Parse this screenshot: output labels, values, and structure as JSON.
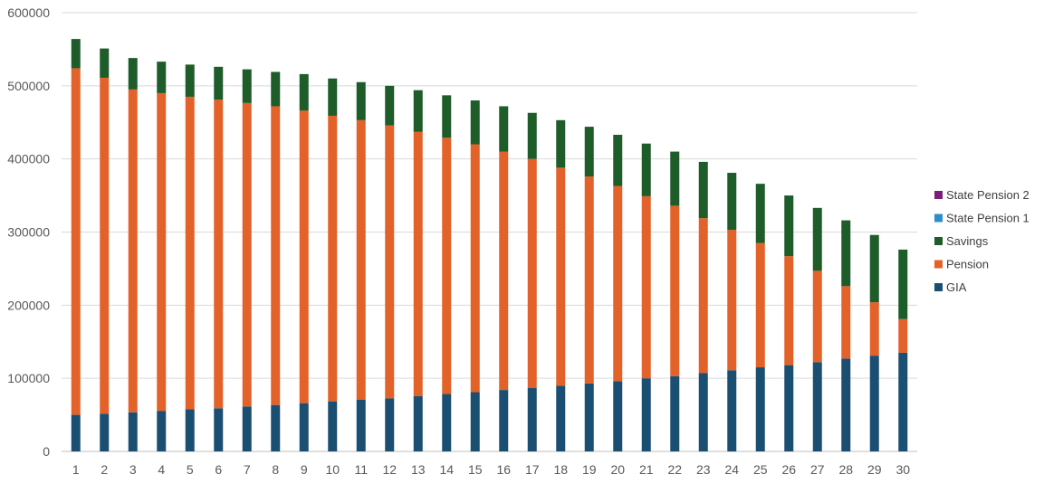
{
  "chart_data": {
    "type": "bar",
    "stacked": true,
    "title": "",
    "xlabel": "",
    "ylabel": "",
    "ylim": [
      0,
      600000
    ],
    "yticks": [
      0,
      100000,
      200000,
      300000,
      400000,
      500000,
      600000
    ],
    "grid": true,
    "legend_position": "right",
    "categories": [
      "1",
      "2",
      "3",
      "4",
      "5",
      "6",
      "7",
      "8",
      "9",
      "10",
      "11",
      "12",
      "13",
      "14",
      "15",
      "16",
      "17",
      "18",
      "19",
      "20",
      "21",
      "22",
      "23",
      "24",
      "25",
      "26",
      "27",
      "28",
      "29",
      "30"
    ],
    "series": [
      {
        "name": "GIA",
        "color": "#1b4f72",
        "values": [
          50000,
          51500,
          53500,
          55500,
          57500,
          59000,
          61500,
          63500,
          66000,
          68500,
          70500,
          72500,
          75500,
          78500,
          81000,
          84000,
          87000,
          90000,
          93000,
          96000,
          100000,
          103000,
          107000,
          111000,
          115000,
          118000,
          122000,
          127000,
          131000,
          135000
        ]
      },
      {
        "name": "Pension",
        "color": "#e2622a",
        "values": [
          474000,
          459500,
          441500,
          434500,
          427500,
          422000,
          415000,
          408500,
          400000,
          390500,
          382500,
          373500,
          361500,
          350500,
          339000,
          326000,
          313000,
          298000,
          283000,
          267000,
          249000,
          233000,
          212000,
          192000,
          170000,
          149000,
          125000,
          99000,
          73000,
          46000
        ]
      },
      {
        "name": "Savings",
        "color": "#1e5c2a",
        "values": [
          40000,
          40000,
          43000,
          43000,
          44000,
          45000,
          46000,
          47000,
          50000,
          51000,
          52000,
          54000,
          57000,
          58000,
          60000,
          62000,
          63000,
          65000,
          68000,
          70000,
          72000,
          74000,
          77000,
          78000,
          81000,
          83000,
          86000,
          90000,
          92000,
          95000
        ]
      },
      {
        "name": "State Pension 1",
        "color": "#2e8fc8",
        "values": [
          0,
          0,
          0,
          0,
          0,
          0,
          0,
          0,
          0,
          0,
          0,
          0,
          0,
          0,
          0,
          0,
          0,
          0,
          0,
          0,
          0,
          0,
          0,
          0,
          0,
          0,
          0,
          0,
          0,
          0
        ]
      },
      {
        "name": "State Pension 2",
        "color": "#7b1f78",
        "values": [
          0,
          0,
          0,
          0,
          0,
          0,
          0,
          0,
          0,
          0,
          0,
          0,
          0,
          0,
          0,
          0,
          0,
          0,
          0,
          0,
          0,
          0,
          0,
          0,
          0,
          0,
          0,
          0,
          0,
          0
        ]
      }
    ]
  }
}
